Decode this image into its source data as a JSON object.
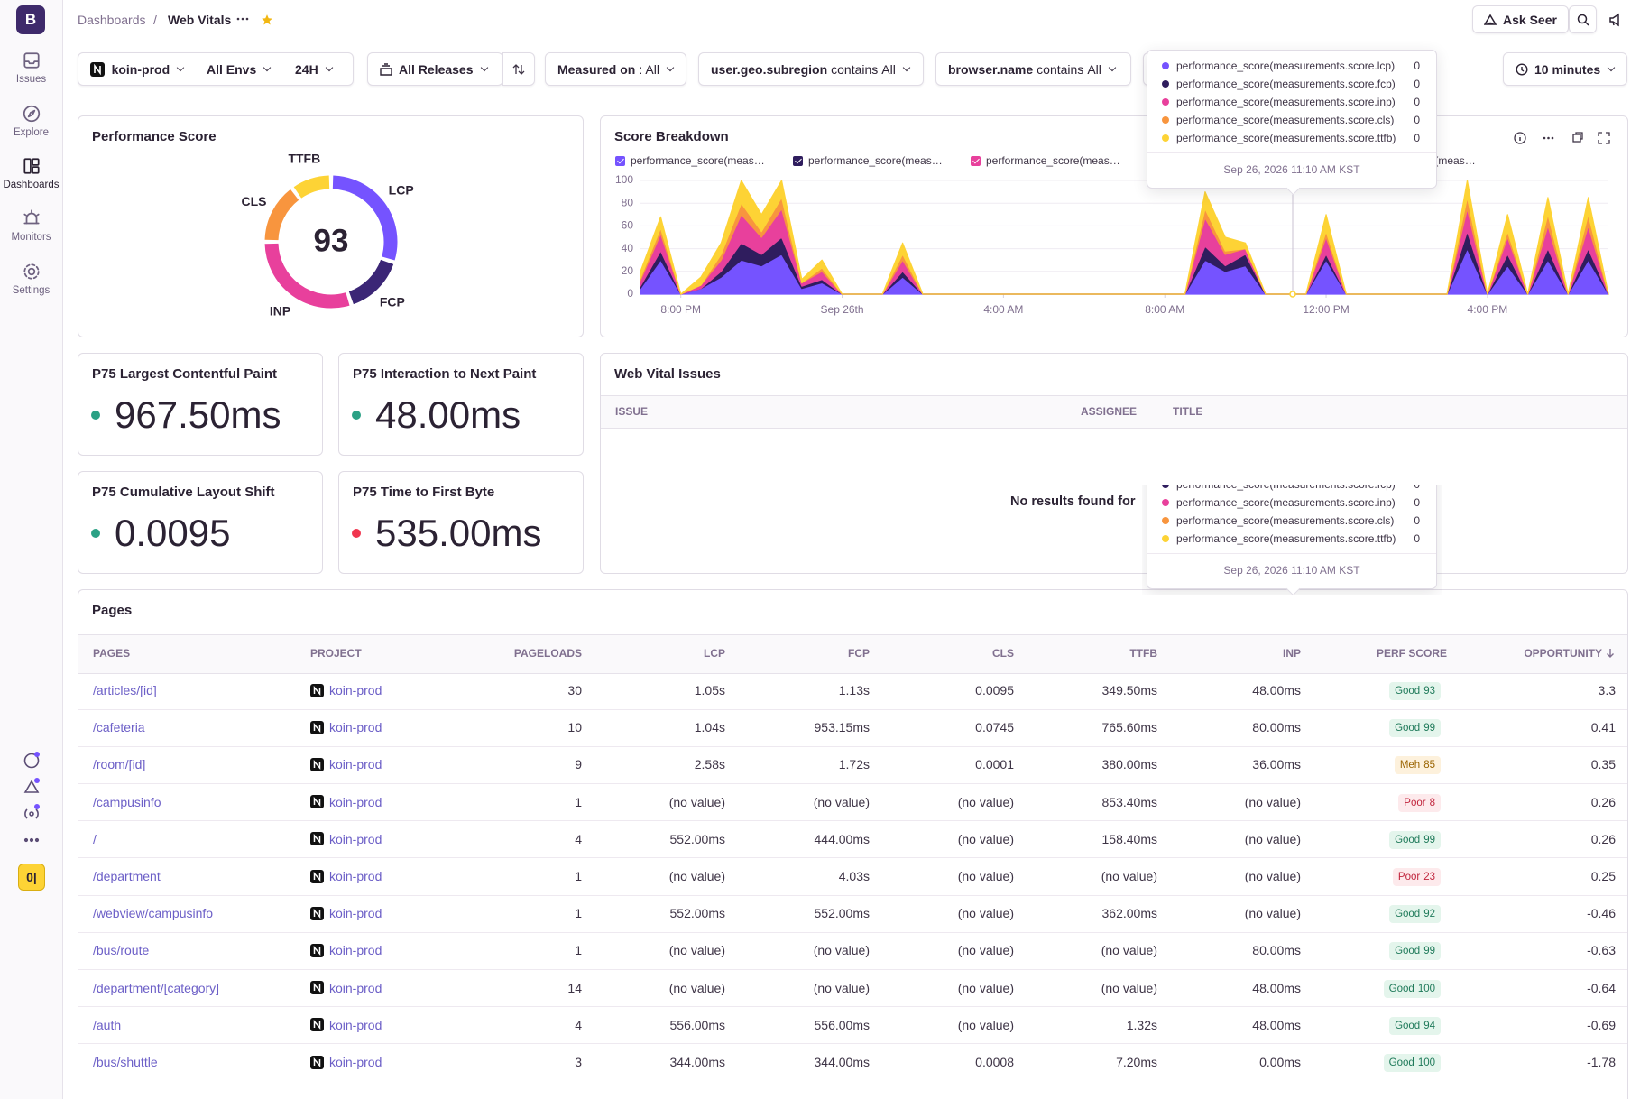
{
  "sidebar": {
    "logo": "B",
    "nav": [
      "Issues",
      "Explore",
      "Dashboards",
      "Monitors",
      "Settings"
    ],
    "badge": "0|"
  },
  "header": {
    "breadcrumb_parent": "Dashboards",
    "separator": "/",
    "title": "Web Vitals",
    "ask_seer": "Ask Seer"
  },
  "filters": {
    "project": "koin-prod",
    "environment": "All Envs",
    "period": "24H",
    "releases": "All Releases",
    "measured_on_key": "Measured on",
    "measured_on_value": ": All",
    "subregion_key": "user.geo.subregion",
    "subregion_op": "contains",
    "subregion_value": "All",
    "browser_key": "browser.name",
    "browser_op": "contains",
    "browser_value": "All",
    "interval": "10 minutes"
  },
  "performance_score": {
    "title": "Performance Score",
    "score": 93,
    "segments": [
      {
        "label": "LCP",
        "weight": 30,
        "color": "#7553ff"
      },
      {
        "label": "FCP",
        "weight": 15,
        "color": "#3b2676"
      },
      {
        "label": "INP",
        "weight": 30,
        "color": "#e8409c"
      },
      {
        "label": "CLS",
        "weight": 15,
        "color": "#f8953e"
      },
      {
        "label": "TTFB",
        "weight": 10,
        "color": "#fdd335"
      }
    ]
  },
  "score_breakdown": {
    "title": "Score Breakdown"
  },
  "chart_data": {
    "type": "area",
    "stacked": true,
    "grid": true,
    "x": [
      0,
      0.5,
      1,
      1.5,
      2,
      2.5,
      3,
      3.5,
      4,
      4.5,
      5,
      5.5,
      6,
      6.5,
      7,
      7.5,
      8,
      8.5,
      9,
      9.5,
      10,
      10.5,
      11,
      11.5,
      12,
      12.5,
      13,
      13.5,
      14,
      14.5,
      15,
      15.5,
      16,
      16.5,
      17,
      17.5,
      18,
      18.5,
      19,
      19.5,
      20,
      20.5,
      21,
      21.5,
      22,
      22.5,
      23,
      23.5,
      24
    ],
    "xlim": [
      0,
      24
    ],
    "xticks": [
      {
        "value": 1,
        "label": "8:00 PM"
      },
      {
        "value": 5,
        "label": "Sep 26th"
      },
      {
        "value": 9,
        "label": "4:00 AM"
      },
      {
        "value": 13,
        "label": "8:00 AM"
      },
      {
        "value": 17,
        "label": "12:00 PM"
      },
      {
        "value": 21,
        "label": "4:00 PM"
      }
    ],
    "ylim": [
      0,
      100
    ],
    "yticks": [
      0,
      20,
      40,
      60,
      80,
      100
    ],
    "series": [
      {
        "name": "performance_score(measurements.score.lcp)",
        "color": "#7553ff",
        "values": [
          5,
          30,
          0,
          5,
          15,
          30,
          25,
          35,
          5,
          10,
          0,
          0,
          0,
          15,
          0,
          0,
          0,
          0,
          0,
          0,
          0,
          0,
          0,
          0,
          0,
          0,
          0,
          0,
          30,
          20,
          25,
          0,
          0,
          0,
          30,
          0,
          0,
          0,
          0,
          0,
          0,
          40,
          0,
          25,
          0,
          30,
          0,
          30,
          0
        ]
      },
      {
        "name": "performance_score(measurements.score.fcp)",
        "color": "#2f1d5e",
        "values": [
          2,
          8,
          0,
          0,
          5,
          15,
          10,
          15,
          2,
          3,
          0,
          0,
          0,
          5,
          0,
          0,
          0,
          0,
          0,
          0,
          0,
          0,
          0,
          0,
          0,
          0,
          0,
          0,
          12,
          5,
          10,
          0,
          0,
          0,
          5,
          0,
          0,
          0,
          0,
          0,
          0,
          15,
          0,
          10,
          0,
          10,
          0,
          10,
          0
        ]
      },
      {
        "name": "performance_score(measurements.score.inp)",
        "color": "#e8409c",
        "values": [
          5,
          15,
          0,
          3,
          10,
          25,
          15,
          25,
          3,
          7,
          0,
          0,
          0,
          10,
          0,
          0,
          0,
          0,
          0,
          0,
          0,
          0,
          0,
          0,
          0,
          0,
          0,
          0,
          25,
          10,
          5,
          0,
          0,
          0,
          15,
          0,
          0,
          0,
          0,
          0,
          0,
          20,
          0,
          15,
          0,
          20,
          0,
          20,
          0
        ]
      },
      {
        "name": "performance_score(measurements.score.cls)",
        "color": "#f8953e",
        "values": [
          2,
          5,
          0,
          0,
          5,
          10,
          5,
          10,
          0,
          3,
          0,
          0,
          0,
          5,
          0,
          0,
          0,
          0,
          0,
          0,
          0,
          0,
          0,
          0,
          0,
          0,
          0,
          0,
          8,
          3,
          0,
          0,
          0,
          0,
          5,
          0,
          0,
          0,
          0,
          0,
          0,
          10,
          0,
          5,
          0,
          10,
          0,
          10,
          0
        ]
      },
      {
        "name": "performance_score(measurements.score.ttfb)",
        "color": "#fdd335",
        "values": [
          6,
          10,
          0,
          7,
          10,
          20,
          15,
          15,
          3,
          7,
          0,
          0,
          0,
          10,
          0,
          0,
          0,
          0,
          0,
          0,
          0,
          0,
          0,
          0,
          0,
          0,
          0,
          0,
          15,
          12,
          5,
          0,
          0,
          0,
          15,
          0,
          0,
          0,
          0,
          0,
          0,
          15,
          0,
          15,
          0,
          15,
          0,
          15,
          0
        ]
      }
    ]
  },
  "tooltip": {
    "values": [
      0,
      0,
      0,
      0,
      0
    ],
    "time": "Sep 26, 2026 11:10 AM KST"
  },
  "metrics": [
    {
      "title": "P75 Largest Contentful Paint",
      "value": "967.50ms",
      "color": "#2ba185"
    },
    {
      "title": "P75 Interaction to Next Paint",
      "value": "48.00ms",
      "color": "#2ba185"
    },
    {
      "title": "P75 Cumulative Layout Shift",
      "value": "0.0095",
      "color": "#2ba185"
    },
    {
      "title": "P75 Time to First Byte",
      "value": "535.00ms",
      "color": "#f0364f"
    }
  ],
  "issues": {
    "title": "Web Vital Issues",
    "columns": [
      "ISSUE",
      "ASSIGNEE",
      "TITLE"
    ],
    "empty_message": "No results found for"
  },
  "pages": {
    "title": "Pages",
    "columns": [
      "PAGES",
      "PROJECT",
      "PAGELOADS",
      "LCP",
      "FCP",
      "CLS",
      "TTFB",
      "INP",
      "PERF SCORE",
      "OPPORTUNITY"
    ],
    "rows": [
      [
        "/articles/[id]",
        "koin-prod",
        30,
        "1.05s",
        "1.13s",
        "0.0095",
        "349.50ms",
        "48.00ms",
        {
          "rating": "Good",
          "score": 93
        },
        3.3
      ],
      [
        "/cafeteria",
        "koin-prod",
        10,
        "1.04s",
        "953.15ms",
        "0.0745",
        "765.60ms",
        "80.00ms",
        {
          "rating": "Good",
          "score": 99
        },
        0.41
      ],
      [
        "/room/[id]",
        "koin-prod",
        9,
        "2.58s",
        "1.72s",
        "0.0001",
        "380.00ms",
        "36.00ms",
        {
          "rating": "Meh",
          "score": 85
        },
        0.35
      ],
      [
        "/campusinfo",
        "koin-prod",
        1,
        "(no value)",
        "(no value)",
        "(no value)",
        "853.40ms",
        "(no value)",
        {
          "rating": "Poor",
          "score": 8
        },
        0.26
      ],
      [
        "/",
        "koin-prod",
        4,
        "552.00ms",
        "444.00ms",
        "(no value)",
        "158.40ms",
        "(no value)",
        {
          "rating": "Good",
          "score": 99
        },
        0.26
      ],
      [
        "/department",
        "koin-prod",
        1,
        "(no value)",
        "4.03s",
        "(no value)",
        "(no value)",
        "(no value)",
        {
          "rating": "Poor",
          "score": 23
        },
        0.25
      ],
      [
        "/webview/campusinfo",
        "koin-prod",
        1,
        "552.00ms",
        "552.00ms",
        "(no value)",
        "362.00ms",
        "(no value)",
        {
          "rating": "Good",
          "score": 92
        },
        -0.46
      ],
      [
        "/bus/route",
        "koin-prod",
        1,
        "(no value)",
        "(no value)",
        "(no value)",
        "(no value)",
        "80.00ms",
        {
          "rating": "Good",
          "score": 99
        },
        -0.63
      ],
      [
        "/department/[category]",
        "koin-prod",
        14,
        "(no value)",
        "(no value)",
        "(no value)",
        "(no value)",
        "48.00ms",
        {
          "rating": "Good",
          "score": 100
        },
        -0.64
      ],
      [
        "/auth",
        "koin-prod",
        4,
        "556.00ms",
        "556.00ms",
        "(no value)",
        "1.32s",
        "48.00ms",
        {
          "rating": "Good",
          "score": 94
        },
        -0.69
      ],
      [
        "/bus/shuttle",
        "koin-prod",
        3,
        "344.00ms",
        "344.00ms",
        "0.0008",
        "7.20ms",
        "0.00ms",
        {
          "rating": "Good",
          "score": 100
        },
        -1.78
      ]
    ]
  }
}
